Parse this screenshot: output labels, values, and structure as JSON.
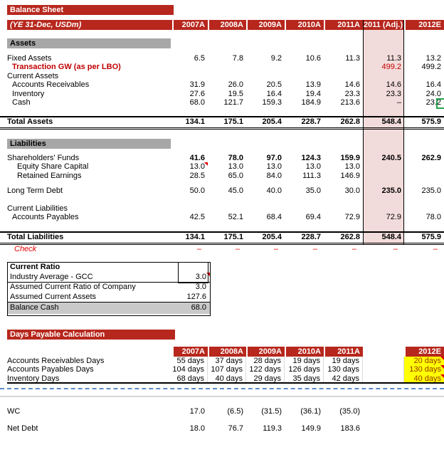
{
  "colors": {
    "header_red": "#B7271D",
    "adjusted_column_pink": "#F2DCDB",
    "section_bar_gray": "#A7A7A7",
    "balance_cash_gray": "#C9C9C9",
    "input_yellow": "#FFFF00",
    "input_text_red": "#993300",
    "value_red": "#C00000",
    "check_red": "#E00000",
    "page_break_blue": "#5C8BC9",
    "selection_green": "#28A350"
  },
  "balance_sheet": {
    "title": "Balance Sheet",
    "unit_label": "(YE 31-Dec, USDm)",
    "columns": [
      "2007A",
      "2008A",
      "2009A",
      "2010A",
      "2011A",
      "2011 (Adj.)",
      "2012E"
    ],
    "assets_header": "Assets",
    "liabilities_header": "Liabilities",
    "asset_rows": [
      {
        "label": "Fixed Assets",
        "values": [
          "6.5",
          "7.8",
          "9.2",
          "10.6",
          "11.3",
          "11.3",
          "13.2"
        ]
      },
      {
        "label": "Transaction GW (as per LBO)",
        "lclass": "ind1 red-bold",
        "values": [
          "",
          "",
          "",
          "",
          "",
          "499.2",
          "499.2"
        ],
        "vclass": {
          "5": "redv"
        }
      },
      {
        "label": "Current Assets",
        "values": [
          "",
          "",
          "",
          "",
          "",
          "",
          ""
        ]
      },
      {
        "label": "Accounts Receivables",
        "lclass": "ind1",
        "values": [
          "31.9",
          "26.0",
          "20.5",
          "13.9",
          "14.6",
          "14.6",
          "16.4"
        ]
      },
      {
        "label": "Inventory",
        "lclass": "ind1",
        "values": [
          "27.6",
          "19.5",
          "16.4",
          "19.4",
          "23.3",
          "23.3",
          "24.0"
        ]
      },
      {
        "label": "Cash",
        "lclass": "ind1",
        "values": [
          "68.0",
          "121.7",
          "159.3",
          "184.9",
          "213.6",
          "–",
          "23.2"
        ]
      }
    ],
    "total_assets": {
      "label": "Total Assets",
      "values": [
        "134.1",
        "175.1",
        "205.4",
        "228.7",
        "262.8",
        "548.4",
        "575.9"
      ]
    },
    "shareholder_rows": [
      {
        "label": "Shareholders' Funds",
        "bold": true,
        "values": [
          "41.6",
          "78.0",
          "97.0",
          "124.3",
          "159.9",
          "240.5",
          "262.9"
        ]
      },
      {
        "label": "Equity Share Capital",
        "lclass": "ind2",
        "values": [
          "13.0",
          "13.0",
          "13.0",
          "13.0",
          "13.0",
          "",
          ""
        ],
        "marker": [
          0
        ]
      },
      {
        "label": "Retained Earnings",
        "lclass": "ind2",
        "values": [
          "28.5",
          "65.0",
          "84.0",
          "111.3",
          "146.9",
          "",
          ""
        ]
      }
    ],
    "long_term_debt_row": [
      {
        "label": "Long Term Debt",
        "values": [
          "50.0",
          "45.0",
          "40.0",
          "35.0",
          "30.0",
          "235.0",
          "235.0"
        ],
        "vclass": {
          "5": "bold"
        }
      }
    ],
    "current_liability_rows": [
      {
        "label": "Current Liabilities",
        "values": [
          "",
          "",
          "",
          "",
          "",
          "",
          ""
        ]
      },
      {
        "label": "Accounts Payables",
        "lclass": "ind1",
        "values": [
          "42.5",
          "52.1",
          "68.4",
          "69.4",
          "72.9",
          "72.9",
          "78.0"
        ]
      }
    ],
    "total_liabilities": {
      "label": "Total Liabilities",
      "values": [
        "134.1",
        "175.1",
        "205.4",
        "228.7",
        "262.8",
        "548.4",
        "575.9"
      ]
    },
    "check_row": [
      {
        "label": "Check",
        "lclass": "italic-red",
        "values": [
          "–",
          "–",
          "–",
          "–",
          "–",
          "–",
          "–"
        ],
        "vall": "red-dash"
      }
    ]
  },
  "current_ratio": {
    "title": "Current Ratio",
    "rows": [
      {
        "label": "Industry Average - GCC",
        "value": "3.0"
      },
      {
        "label": "Assumed Current Ratio of Company",
        "value": "3.0"
      },
      {
        "label": "Assumed Current Assets",
        "value": "127.6"
      }
    ],
    "balance_cash": {
      "label": "Balance Cash",
      "value": "68.0"
    }
  },
  "days_payable": {
    "title": "Days Payable Calculation",
    "columns": [
      "2007A",
      "2008A",
      "2009A",
      "2010A",
      "2011A",
      "",
      "2012E"
    ],
    "rows": [
      {
        "label": "Accounts Receivables Days",
        "values": [
          "55 days",
          "37 days",
          "28 days",
          "19 days",
          "19 days",
          "",
          "20 days"
        ]
      },
      {
        "label": "Accounts Payables Days",
        "values": [
          "104 days",
          "107 days",
          "122 days",
          "126 days",
          "130 days",
          "",
          "130 days"
        ]
      },
      {
        "label": "Inventory Days",
        "values": [
          "68 days",
          "40 days",
          "29 days",
          "35 days",
          "42 days",
          "",
          "40 days"
        ]
      }
    ]
  },
  "bottom": {
    "rows": [
      {
        "label": "WC",
        "values": [
          "17.0",
          "(6.5)",
          "(31.5)",
          "(36.1)",
          "(35.0)",
          "",
          ""
        ]
      },
      {
        "label": "Net Debt",
        "values": [
          "18.0",
          "76.7",
          "119.3",
          "149.9",
          "183.6",
          "",
          ""
        ]
      }
    ]
  }
}
